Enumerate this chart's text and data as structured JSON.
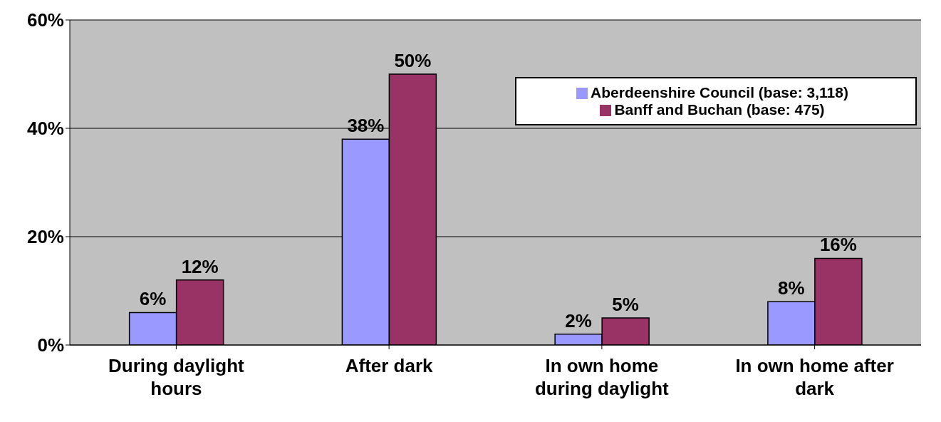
{
  "chart_data": {
    "type": "bar",
    "categories": [
      "During daylight hours",
      "After dark",
      "In own home during daylight",
      "In own home after dark"
    ],
    "series": [
      {
        "name": "Aberdeenshire Council (base: 3,118)",
        "color": "#9999ff",
        "values": [
          6,
          38,
          2,
          8
        ],
        "value_labels": [
          "6%",
          "38%",
          "2%",
          "8%"
        ]
      },
      {
        "name": "Banff and Buchan (base: 475)",
        "color": "#993366",
        "values": [
          12,
          50,
          5,
          16
        ],
        "value_labels": [
          "12%",
          "50%",
          "5%",
          "16%"
        ]
      }
    ],
    "ylim": [
      0,
      60
    ],
    "yticks": [
      {
        "value": 0,
        "label": "0%"
      },
      {
        "value": 20,
        "label": "20%"
      },
      {
        "value": 40,
        "label": "40%"
      },
      {
        "value": 60,
        "label": "60%"
      }
    ],
    "grid": "y",
    "legend": "top right"
  }
}
